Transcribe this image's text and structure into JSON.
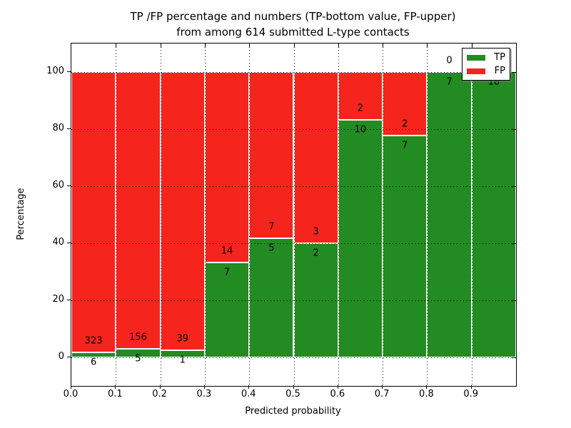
{
  "title": {
    "line1": "TP /FP percentage and numbers (TP-bottom value, FP-upper)",
    "line2": "from among 614 submitted L-type contacts"
  },
  "axes": {
    "xlabel": "Predicted probability",
    "ylabel": "Percentage",
    "x_tick_labels": [
      "0.0",
      "0.1",
      "0.2",
      "0.3",
      "0.4",
      "0.5",
      "0.6",
      "0.7",
      "0.8",
      "0.9"
    ],
    "y_tick_labels": [
      "0",
      "20",
      "40",
      "60",
      "80",
      "100"
    ],
    "y_tick_values": [
      0,
      20,
      40,
      60,
      80,
      100
    ]
  },
  "legend": {
    "items": [
      {
        "label": "TP",
        "color": "#228b22"
      },
      {
        "label": "FP",
        "color": "#f5241d"
      }
    ]
  },
  "colors": {
    "tp": "#228b22",
    "fp": "#f5241d",
    "grid": "#000000",
    "background": "#ffffff"
  },
  "chart_data": {
    "type": "bar",
    "stacked": true,
    "normalized": "each bin scaled to 100%",
    "title": "TP /FP percentage and numbers (TP-bottom value, FP-upper) from among 614 submitted L-type contacts",
    "xlabel": "Predicted probability",
    "ylabel": "Percentage",
    "categories": [
      "0.0-0.1",
      "0.1-0.2",
      "0.2-0.3",
      "0.3-0.4",
      "0.4-0.5",
      "0.5-0.6",
      "0.6-0.7",
      "0.7-0.8",
      "0.8-0.9",
      "0.9-1.0"
    ],
    "series": [
      {
        "name": "TP",
        "counts": [
          6,
          5,
          1,
          7,
          5,
          2,
          10,
          7,
          7,
          18
        ],
        "percent": [
          1.8,
          3.1,
          2.5,
          33.3,
          41.7,
          40.0,
          83.3,
          77.8,
          100.0,
          100.0
        ]
      },
      {
        "name": "FP",
        "counts": [
          323,
          156,
          39,
          14,
          7,
          3,
          2,
          2,
          0,
          0
        ],
        "percent": [
          98.2,
          96.9,
          97.5,
          66.7,
          58.3,
          60.0,
          16.7,
          22.2,
          0.0,
          0.0
        ]
      }
    ],
    "total_contacts": 614,
    "xlim": [
      0.0,
      1.0
    ],
    "ylim": [
      -10,
      110
    ],
    "grid": true,
    "grid_style": "dotted",
    "legend_position": "upper right"
  }
}
